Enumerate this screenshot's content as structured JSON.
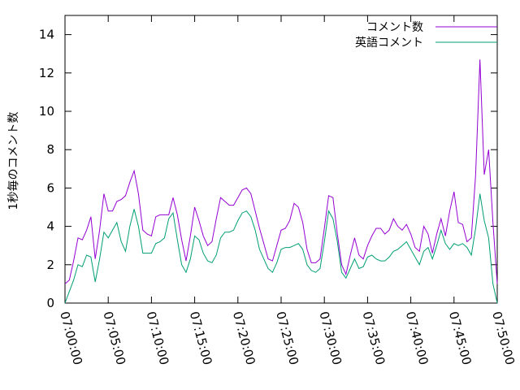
{
  "chart_data": {
    "type": "line",
    "title": "",
    "xlabel": "",
    "ylabel": "1秒毎のコメント数",
    "xlim": [
      "07:00:00",
      "07:50:00"
    ],
    "ylim": [
      0,
      15
    ],
    "x_ticks": [
      "07:00:00",
      "07:05:00",
      "07:10:00",
      "07:15:00",
      "07:20:00",
      "07:25:00",
      "07:30:00",
      "07:35:00",
      "07:40:00",
      "07:45:00",
      "07:50:00"
    ],
    "y_ticks": [
      0,
      2,
      4,
      6,
      8,
      10,
      12,
      14
    ],
    "grid": false,
    "legend_position": "top-right",
    "x_minutes_note": "values sampled every 0.5 minutes starting at 07:00:00",
    "series": [
      {
        "name": "コメント数",
        "color": "#9400d3",
        "values": [
          1.0,
          1.2,
          2.2,
          3.4,
          3.3,
          3.8,
          4.5,
          2.3,
          3.8,
          5.7,
          4.8,
          4.8,
          5.3,
          5.4,
          5.6,
          6.3,
          6.9,
          5.7,
          3.8,
          3.6,
          3.5,
          4.5,
          4.6,
          4.6,
          4.6,
          5.5,
          4.6,
          3.3,
          2.2,
          3.5,
          5.0,
          4.3,
          3.5,
          3.0,
          3.2,
          4.4,
          5.5,
          5.3,
          5.1,
          5.1,
          5.5,
          5.9,
          6.0,
          5.7,
          4.8,
          3.9,
          3.1,
          2.3,
          2.2,
          3.0,
          3.8,
          3.9,
          4.3,
          5.2,
          5.0,
          4.2,
          2.8,
          2.1,
          2.1,
          2.3,
          3.9,
          5.6,
          5.5,
          3.6,
          2.0,
          1.5,
          2.5,
          3.4,
          2.5,
          2.3,
          3.0,
          3.5,
          3.9,
          3.9,
          3.6,
          3.8,
          4.4,
          4.0,
          3.8,
          4.1,
          3.6,
          2.9,
          2.7,
          4.0,
          3.6,
          2.6,
          3.6,
          4.4,
          3.5,
          4.8,
          5.8,
          4.2,
          4.1,
          3.2,
          3.4,
          6.7,
          12.7,
          6.7,
          8.0,
          4.2,
          1.0
        ]
      },
      {
        "name": "英語コメント",
        "color": "#009e73",
        "values": [
          0.0,
          0.6,
          1.2,
          2.0,
          1.9,
          2.5,
          2.4,
          1.1,
          2.3,
          3.7,
          3.4,
          3.8,
          4.2,
          3.2,
          2.7,
          4.0,
          4.9,
          4.0,
          2.6,
          2.6,
          2.6,
          3.1,
          3.2,
          3.4,
          4.4,
          4.7,
          3.3,
          2.0,
          1.6,
          2.3,
          3.5,
          3.3,
          2.6,
          2.2,
          2.1,
          2.5,
          3.4,
          3.7,
          3.7,
          3.8,
          4.3,
          4.7,
          4.8,
          4.5,
          3.8,
          2.8,
          2.3,
          1.8,
          1.6,
          2.1,
          2.8,
          2.9,
          2.9,
          3.0,
          3.1,
          2.8,
          2.0,
          1.7,
          1.6,
          1.8,
          3.2,
          4.8,
          4.4,
          3.2,
          1.6,
          1.3,
          1.8,
          2.3,
          1.8,
          1.9,
          2.4,
          2.5,
          2.3,
          2.2,
          2.2,
          2.4,
          2.7,
          2.8,
          3.0,
          3.2,
          2.8,
          2.4,
          2.0,
          2.7,
          2.9,
          2.3,
          3.0,
          3.8,
          3.1,
          2.8,
          3.1,
          3.0,
          3.1,
          2.9,
          2.5,
          3.9,
          5.7,
          4.3,
          3.4,
          1.0,
          0.0
        ]
      }
    ]
  }
}
